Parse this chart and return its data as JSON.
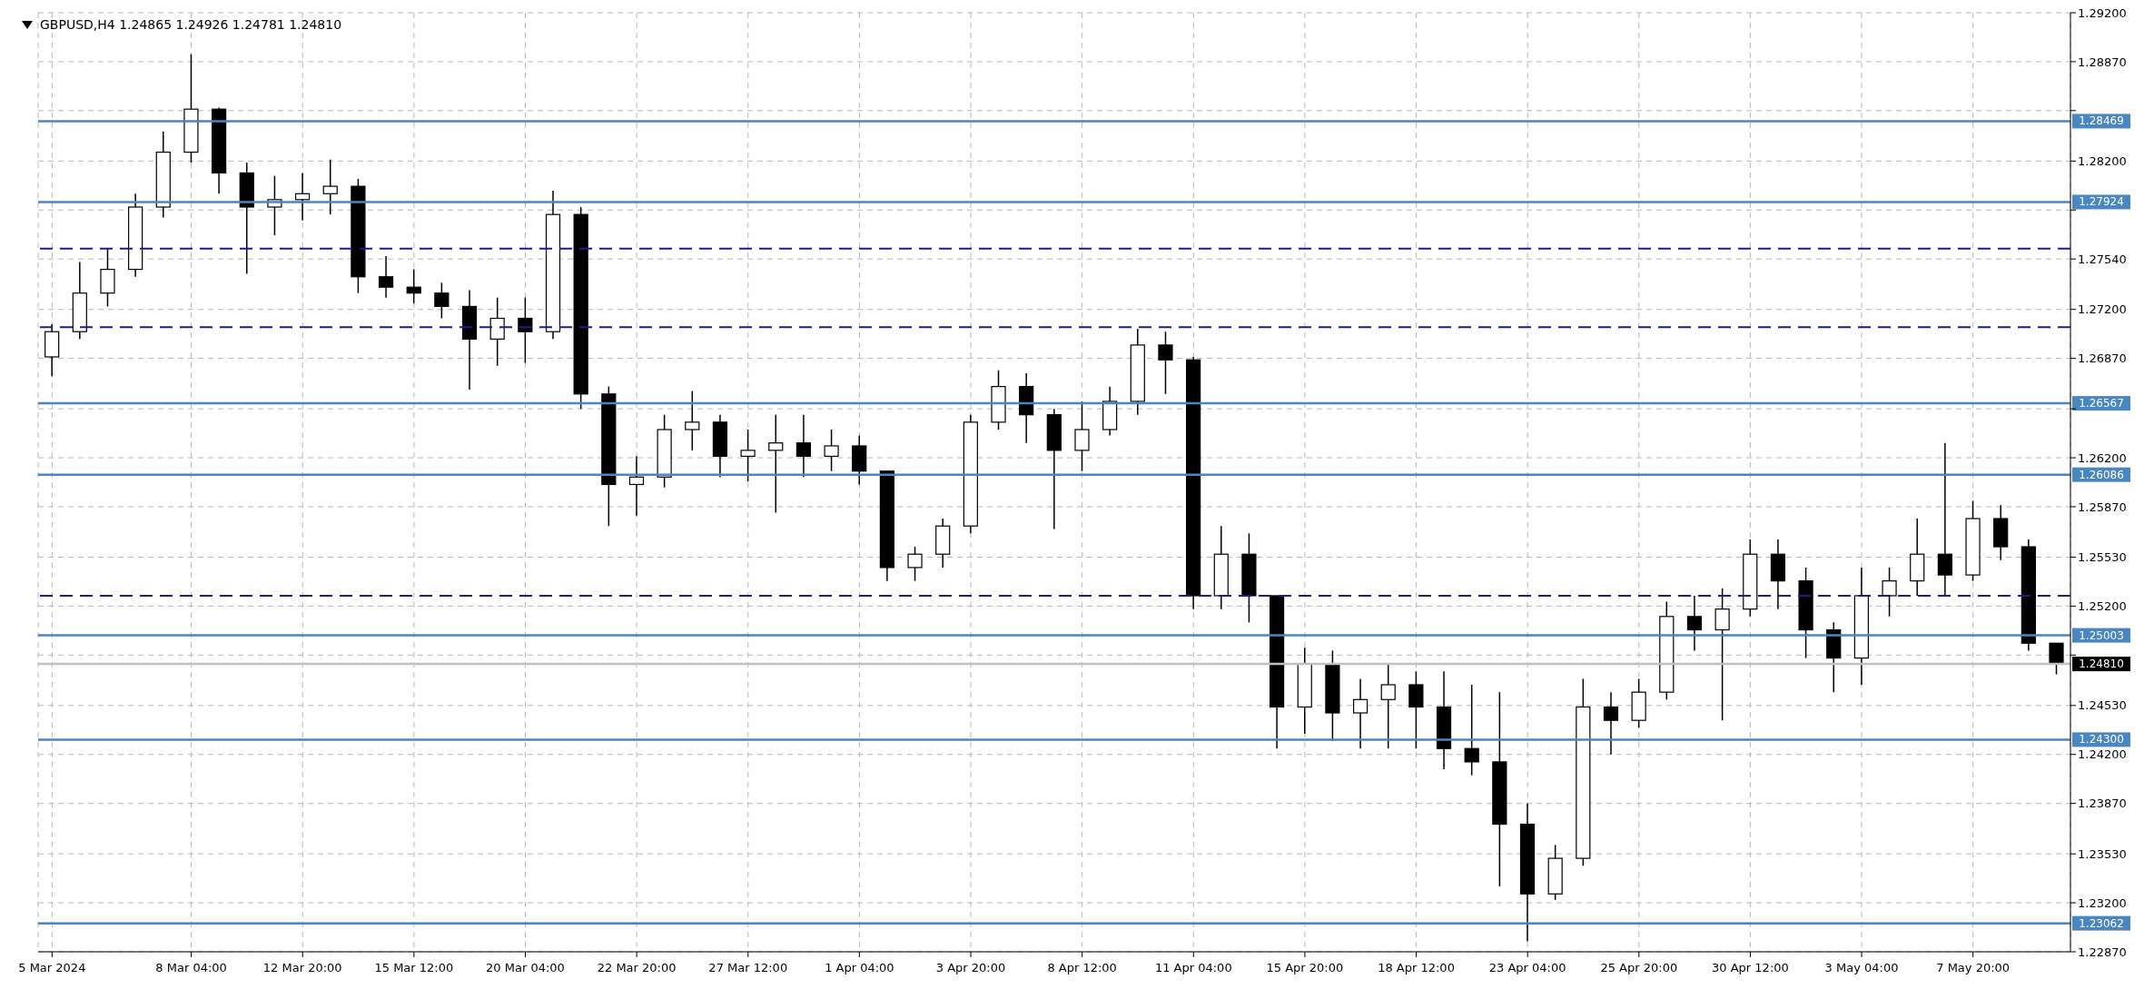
{
  "chart_data": {
    "type": "candlestick",
    "title": "GBPUSD,H4  1.24865 1.24926 1.24781 1.24810",
    "categories": [
      "5 Mar 2024",
      null,
      null,
      null,
      null,
      "8 Mar 04:00",
      null,
      null,
      null,
      "12 Mar 20:00",
      null,
      null,
      null,
      "15 Mar 12:00",
      null,
      null,
      null,
      "20 Mar 04:00",
      null,
      null,
      null,
      "22 Mar 20:00",
      null,
      null,
      null,
      "27 Mar 12:00",
      null,
      null,
      null,
      "1 Apr 04:00",
      null,
      null,
      null,
      "3 Apr 20:00",
      null,
      null,
      null,
      "8 Apr 12:00",
      null,
      null,
      null,
      "11 Apr 04:00",
      null,
      null,
      null,
      "15 Apr 20:00",
      null,
      null,
      null,
      "18 Apr 12:00",
      null,
      null,
      null,
      "23 Apr 04:00",
      null,
      null,
      null,
      "25 Apr 20:00",
      null,
      null,
      null,
      "30 Apr 12:00",
      null,
      null,
      null,
      "3 May 04:00",
      null,
      null,
      null,
      "7 May 20:00",
      null,
      null,
      null
    ],
    "ohlc": [
      [
        1.2688,
        1.271,
        1.2675,
        1.2705
      ],
      [
        1.2705,
        1.2752,
        1.27,
        1.2731
      ],
      [
        1.2731,
        1.2761,
        1.2722,
        1.2747
      ],
      [
        1.2747,
        1.2798,
        1.2742,
        1.2789
      ],
      [
        1.2789,
        1.284,
        1.2782,
        1.2826
      ],
      [
        1.2826,
        1.2892,
        1.2819,
        1.2855
      ],
      [
        1.2855,
        1.2856,
        1.2798,
        1.2812
      ],
      [
        1.2812,
        1.2819,
        1.2744,
        1.2789
      ],
      [
        1.2789,
        1.281,
        1.277,
        1.2794
      ],
      [
        1.2794,
        1.2812,
        1.278,
        1.2798
      ],
      [
        1.2798,
        1.2821,
        1.2784,
        1.2803
      ],
      [
        1.2803,
        1.2808,
        1.2731,
        1.2742
      ],
      [
        1.2742,
        1.2756,
        1.2728,
        1.2735
      ],
      [
        1.2735,
        1.2747,
        1.2724,
        1.2731
      ],
      [
        1.2731,
        1.2738,
        1.2714,
        1.2722
      ],
      [
        1.2722,
        1.2733,
        1.2666,
        1.27
      ],
      [
        1.27,
        1.2728,
        1.2682,
        1.2714
      ],
      [
        1.2714,
        1.2728,
        1.2684,
        1.2705
      ],
      [
        1.2705,
        1.28,
        1.27,
        1.2784
      ],
      [
        1.2784,
        1.2789,
        1.2653,
        1.2663
      ],
      [
        1.2663,
        1.2668,
        1.2574,
        1.2602
      ],
      [
        1.2602,
        1.2621,
        1.2581,
        1.2607
      ],
      [
        1.2607,
        1.2649,
        1.26,
        1.2639
      ],
      [
        1.2639,
        1.2665,
        1.2625,
        1.2644
      ],
      [
        1.2644,
        1.2649,
        1.2607,
        1.2621
      ],
      [
        1.2621,
        1.2639,
        1.2604,
        1.2625
      ],
      [
        1.2625,
        1.2649,
        1.2583,
        1.263
      ],
      [
        1.263,
        1.2649,
        1.2607,
        1.2621
      ],
      [
        1.2621,
        1.2639,
        1.2611,
        1.2628
      ],
      [
        1.2628,
        1.2635,
        1.2602,
        1.2611
      ],
      [
        1.2611,
        1.2611,
        1.2537,
        1.2546
      ],
      [
        1.2546,
        1.256,
        1.2537,
        1.2555
      ],
      [
        1.2555,
        1.2579,
        1.2546,
        1.2574
      ],
      [
        1.2574,
        1.2649,
        1.2569,
        1.2644
      ],
      [
        1.2644,
        1.2679,
        1.2639,
        1.2668
      ],
      [
        1.2668,
        1.2677,
        1.263,
        1.2649
      ],
      [
        1.2649,
        1.2653,
        1.2572,
        1.2625
      ],
      [
        1.2625,
        1.2658,
        1.2611,
        1.2639
      ],
      [
        1.2639,
        1.2668,
        1.2635,
        1.2658
      ],
      [
        1.2658,
        1.2707,
        1.2649,
        1.2696
      ],
      [
        1.2696,
        1.2705,
        1.2663,
        1.2686
      ],
      [
        1.2686,
        1.2688,
        1.2518,
        1.2527
      ],
      [
        1.2527,
        1.2574,
        1.2518,
        1.2555
      ],
      [
        1.2555,
        1.2569,
        1.2509,
        1.2527
      ],
      [
        1.2527,
        1.2527,
        1.2424,
        1.2452
      ],
      [
        1.2452,
        1.2492,
        1.2434,
        1.2481
      ],
      [
        1.2481,
        1.249,
        1.2429,
        1.2448
      ],
      [
        1.2448,
        1.2471,
        1.2424,
        1.2457
      ],
      [
        1.2457,
        1.2481,
        1.2424,
        1.2467
      ],
      [
        1.2467,
        1.2476,
        1.2424,
        1.2452
      ],
      [
        1.2452,
        1.2476,
        1.241,
        1.2424
      ],
      [
        1.2424,
        1.2467,
        1.2406,
        1.2415
      ],
      [
        1.2415,
        1.2462,
        1.2331,
        1.2373
      ],
      [
        1.2373,
        1.2387,
        1.2294,
        1.2326
      ],
      [
        1.2326,
        1.2359,
        1.2322,
        1.235
      ],
      [
        1.235,
        1.2471,
        1.2345,
        1.2452
      ],
      [
        1.2452,
        1.2462,
        1.242,
        1.2443
      ],
      [
        1.2443,
        1.2471,
        1.2438,
        1.2462
      ],
      [
        1.2462,
        1.2523,
        1.2457,
        1.2513
      ],
      [
        1.2513,
        1.2527,
        1.249,
        1.2504
      ],
      [
        1.2504,
        1.2532,
        1.2443,
        1.2518
      ],
      [
        1.2518,
        1.2565,
        1.2513,
        1.2555
      ],
      [
        1.2555,
        1.2565,
        1.2518,
        1.2537
      ],
      [
        1.2537,
        1.2546,
        1.2485,
        1.2504
      ],
      [
        1.2504,
        1.2509,
        1.2462,
        1.2485
      ],
      [
        1.2485,
        1.2546,
        1.2467,
        1.2527
      ],
      [
        1.2527,
        1.2546,
        1.2513,
        1.2537
      ],
      [
        1.2537,
        1.2579,
        1.2527,
        1.2555
      ],
      [
        1.2555,
        1.263,
        1.2527,
        1.2541
      ],
      [
        1.2541,
        1.2591,
        1.2537,
        1.2579
      ],
      [
        1.2579,
        1.2588,
        1.2551,
        1.256
      ],
      [
        1.256,
        1.2565,
        1.249,
        1.2495
      ],
      [
        1.2495,
        1.2495,
        1.2474,
        1.2481
      ]
    ],
    "ylim": [
      1.2287,
      1.292
    ],
    "yticks": [
      {
        "value": 1.292,
        "label": "1.29200"
      },
      {
        "value": 1.2887,
        "label": "1.28870"
      },
      {
        "value": 1.2854,
        "label": null
      },
      {
        "value": 1.282,
        "label": "1.28200"
      },
      {
        "value": 1.2787,
        "label": null
      },
      {
        "value": 1.2754,
        "label": "1.27540"
      },
      {
        "value": 1.272,
        "label": "1.27200"
      },
      {
        "value": 1.2687,
        "label": "1.26870"
      },
      {
        "value": 1.2653,
        "label": null
      },
      {
        "value": 1.262,
        "label": "1.26200"
      },
      {
        "value": 1.2587,
        "label": "1.25870"
      },
      {
        "value": 1.2553,
        "label": "1.25530"
      },
      {
        "value": 1.252,
        "label": "1.25200"
      },
      {
        "value": 1.2487,
        "label": null
      },
      {
        "value": 1.2453,
        "label": "1.24530"
      },
      {
        "value": 1.242,
        "label": "1.24200"
      },
      {
        "value": 1.2387,
        "label": "1.23870"
      },
      {
        "value": 1.2353,
        "label": "1.23530"
      },
      {
        "value": 1.232,
        "label": "1.23200"
      },
      {
        "value": 1.2287,
        "label": "1.22870"
      }
    ],
    "grid": true,
    "ref_lines": [
      {
        "axis": "y",
        "value": 1.28469,
        "label": "1.28469",
        "color": "#4a86c0"
      },
      {
        "axis": "y",
        "value": 1.27924,
        "label": "1.27924",
        "color": "#4a86c0"
      },
      {
        "axis": "y",
        "value": 1.26567,
        "label": "1.26567",
        "color": "#4a86c0"
      },
      {
        "axis": "y",
        "value": 1.26086,
        "label": "1.26086",
        "color": "#4a86c0"
      },
      {
        "axis": "y",
        "value": 1.25003,
        "label": "1.25003",
        "color": "#4a86c0"
      },
      {
        "axis": "y",
        "value": 1.243,
        "label": "1.24300",
        "color": "#4a86c0"
      },
      {
        "axis": "y",
        "value": 1.23062,
        "label": "1.23062",
        "color": "#4a86c0"
      },
      {
        "axis": "y",
        "value": 1.2481,
        "label": "1.24810",
        "color": "#c0c0c0"
      },
      {
        "axis": "y",
        "value": 1.2761,
        "color": "#1c1c8c",
        "line_style": "dashed"
      },
      {
        "axis": "y",
        "value": 1.2708,
        "color": "#1c1c8c",
        "line_style": "dashed"
      },
      {
        "axis": "y",
        "value": 1.2527,
        "color": "#1c1c8c",
        "line_style": "dashed"
      }
    ]
  }
}
